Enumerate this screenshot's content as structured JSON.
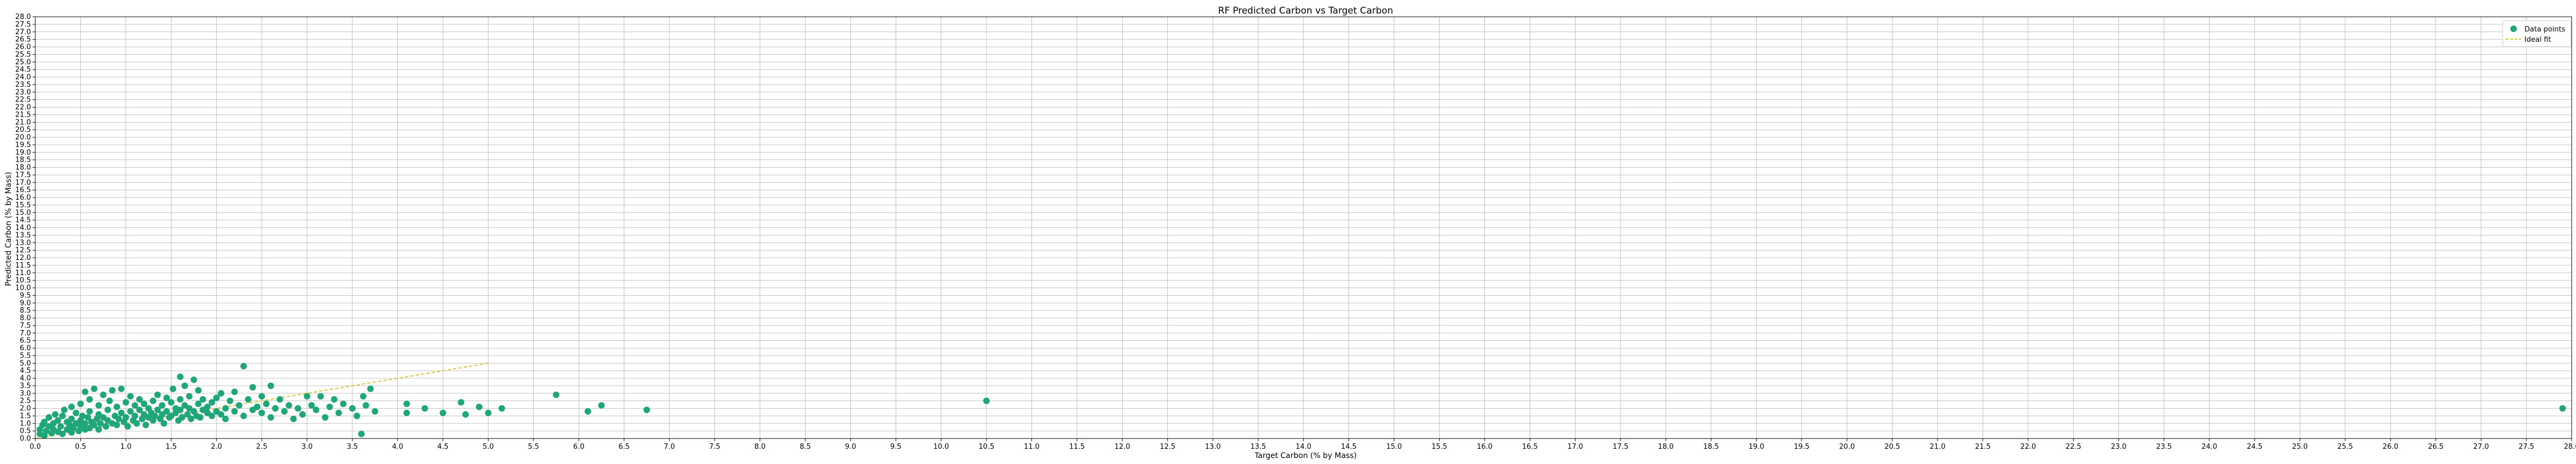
{
  "chart_data": {
    "type": "scatter",
    "title": "RF Predicted Carbon vs Target Carbon",
    "xlabel": "Target Carbon (% by Mass)",
    "ylabel": "Predicted Carbon (% by Mass)",
    "xlim": [
      0,
      28
    ],
    "ylim": [
      0,
      28
    ],
    "xtick_step": 0.5,
    "ytick_step": 0.5,
    "grid": true,
    "legend_position": "top-right",
    "colors": {
      "points": "#21a67a",
      "ideal_fit": "#d4c83a",
      "grid": "#b0b0b0"
    },
    "series": [
      {
        "name": "Data points",
        "kind": "scatter",
        "points": [
          [
            0.05,
            0.3
          ],
          [
            0.05,
            0.6
          ],
          [
            0.08,
            0.9
          ],
          [
            0.1,
            0.2
          ],
          [
            0.1,
            1.1
          ],
          [
            0.12,
            0.5
          ],
          [
            0.15,
            0.8
          ],
          [
            0.15,
            1.4
          ],
          [
            0.18,
            0.35
          ],
          [
            0.2,
            0.6
          ],
          [
            0.2,
            1.0
          ],
          [
            0.22,
            1.6
          ],
          [
            0.25,
            0.45
          ],
          [
            0.25,
            1.2
          ],
          [
            0.28,
            0.8
          ],
          [
            0.3,
            0.3
          ],
          [
            0.3,
            1.5
          ],
          [
            0.32,
            1.9
          ],
          [
            0.35,
            0.6
          ],
          [
            0.35,
            1.1
          ],
          [
            0.38,
            0.9
          ],
          [
            0.4,
            0.4
          ],
          [
            0.4,
            1.3
          ],
          [
            0.4,
            2.1
          ],
          [
            0.42,
            0.7
          ],
          [
            0.45,
            1.0
          ],
          [
            0.45,
            1.7
          ],
          [
            0.48,
            0.5
          ],
          [
            0.5,
            0.8
          ],
          [
            0.5,
            1.2
          ],
          [
            0.5,
            2.3
          ],
          [
            0.52,
            1.5
          ],
          [
            0.55,
            0.6
          ],
          [
            0.55,
            1.0
          ],
          [
            0.55,
            3.1
          ],
          [
            0.58,
            1.4
          ],
          [
            0.6,
            0.7
          ],
          [
            0.6,
            1.8
          ],
          [
            0.6,
            2.6
          ],
          [
            0.62,
            1.1
          ],
          [
            0.65,
            0.9
          ],
          [
            0.65,
            3.3
          ],
          [
            0.68,
            1.3
          ],
          [
            0.7,
            0.6
          ],
          [
            0.7,
            1.6
          ],
          [
            0.7,
            2.2
          ],
          [
            0.72,
            1.0
          ],
          [
            0.75,
            1.4
          ],
          [
            0.75,
            2.9
          ],
          [
            0.78,
            0.8
          ],
          [
            0.8,
            1.2
          ],
          [
            0.8,
            1.9
          ],
          [
            0.82,
            2.5
          ],
          [
            0.85,
            1.0
          ],
          [
            0.85,
            3.2
          ],
          [
            0.88,
            1.5
          ],
          [
            0.9,
            0.9
          ],
          [
            0.9,
            2.1
          ],
          [
            0.92,
            1.3
          ],
          [
            0.95,
            1.7
          ],
          [
            0.95,
            3.3
          ],
          [
            0.98,
            1.1
          ],
          [
            1.0,
            1.4
          ],
          [
            1.0,
            2.4
          ],
          [
            1.02,
            0.8
          ],
          [
            1.05,
            1.8
          ],
          [
            1.05,
            2.8
          ],
          [
            1.08,
            1.2
          ],
          [
            1.1,
            1.5
          ],
          [
            1.1,
            2.2
          ],
          [
            1.12,
            1.0
          ],
          [
            1.15,
            1.9
          ],
          [
            1.15,
            2.6
          ],
          [
            1.18,
            1.3
          ],
          [
            1.2,
            1.6
          ],
          [
            1.2,
            2.3
          ],
          [
            1.22,
            0.9
          ],
          [
            1.25,
            1.4
          ],
          [
            1.25,
            2.0
          ],
          [
            1.28,
            1.7
          ],
          [
            1.3,
            1.2
          ],
          [
            1.3,
            2.5
          ],
          [
            1.32,
            1.5
          ],
          [
            1.35,
            1.9
          ],
          [
            1.35,
            2.9
          ],
          [
            1.38,
            1.3
          ],
          [
            1.4,
            1.6
          ],
          [
            1.4,
            2.2
          ],
          [
            1.42,
            1.0
          ],
          [
            1.45,
            1.8
          ],
          [
            1.45,
            2.7
          ],
          [
            1.48,
            1.4
          ],
          [
            1.5,
            1.5
          ],
          [
            1.5,
            2.4
          ],
          [
            1.52,
            3.3
          ],
          [
            1.55,
            1.7
          ],
          [
            1.55,
            2.0
          ],
          [
            1.58,
            1.2
          ],
          [
            1.6,
            1.9
          ],
          [
            1.6,
            2.6
          ],
          [
            1.6,
            4.1
          ],
          [
            1.62,
            1.4
          ],
          [
            1.65,
            2.2
          ],
          [
            1.65,
            3.5
          ],
          [
            1.68,
            1.6
          ],
          [
            1.7,
            2.0
          ],
          [
            1.7,
            2.8
          ],
          [
            1.72,
            1.3
          ],
          [
            1.75,
            1.8
          ],
          [
            1.75,
            3.9
          ],
          [
            1.78,
            1.5
          ],
          [
            1.8,
            2.3
          ],
          [
            1.8,
            3.2
          ],
          [
            1.82,
            1.4
          ],
          [
            1.85,
            1.9
          ],
          [
            1.85,
            2.6
          ],
          [
            1.9,
            1.7
          ],
          [
            1.9,
            2.1
          ],
          [
            1.95,
            1.5
          ],
          [
            1.95,
            2.4
          ],
          [
            2.0,
            1.8
          ],
          [
            2.0,
            2.7
          ],
          [
            2.05,
            1.6
          ],
          [
            2.05,
            3.0
          ],
          [
            2.1,
            2.0
          ],
          [
            2.1,
            1.3
          ],
          [
            2.15,
            2.5
          ],
          [
            2.2,
            1.8
          ],
          [
            2.2,
            3.1
          ],
          [
            2.25,
            2.2
          ],
          [
            2.3,
            1.5
          ],
          [
            2.3,
            4.8
          ],
          [
            2.35,
            2.6
          ],
          [
            2.4,
            1.9
          ],
          [
            2.4,
            3.4
          ],
          [
            2.45,
            2.1
          ],
          [
            2.5,
            1.7
          ],
          [
            2.5,
            2.8
          ],
          [
            2.55,
            2.3
          ],
          [
            2.6,
            3.5
          ],
          [
            2.6,
            1.4
          ],
          [
            2.65,
            2.0
          ],
          [
            2.7,
            2.6
          ],
          [
            2.75,
            1.8
          ],
          [
            2.8,
            2.2
          ],
          [
            2.85,
            1.3
          ],
          [
            2.9,
            2.0
          ],
          [
            2.95,
            1.6
          ],
          [
            3.0,
            2.8
          ],
          [
            3.05,
            2.2
          ],
          [
            3.1,
            1.9
          ],
          [
            3.15,
            2.8
          ],
          [
            3.2,
            1.4
          ],
          [
            3.25,
            2.1
          ],
          [
            3.3,
            2.6
          ],
          [
            3.35,
            1.7
          ],
          [
            3.4,
            2.3
          ],
          [
            3.5,
            2.0
          ],
          [
            3.55,
            1.5
          ],
          [
            3.6,
            0.3
          ],
          [
            3.62,
            2.8
          ],
          [
            3.65,
            2.2
          ],
          [
            3.7,
            3.3
          ],
          [
            3.75,
            1.8
          ],
          [
            4.1,
            2.3
          ],
          [
            4.1,
            1.7
          ],
          [
            4.3,
            2.0
          ],
          [
            4.5,
            1.7
          ],
          [
            4.7,
            2.4
          ],
          [
            4.75,
            1.6
          ],
          [
            4.9,
            2.1
          ],
          [
            5.0,
            1.7
          ],
          [
            5.15,
            2.0
          ],
          [
            5.75,
            2.9
          ],
          [
            6.1,
            1.8
          ],
          [
            6.25,
            2.2
          ],
          [
            6.75,
            1.9
          ],
          [
            10.5,
            2.5
          ],
          [
            27.9,
            2.0
          ]
        ]
      },
      {
        "name": "Ideal fit",
        "kind": "line",
        "points": [
          [
            0,
            0
          ],
          [
            5,
            5
          ]
        ]
      }
    ]
  }
}
